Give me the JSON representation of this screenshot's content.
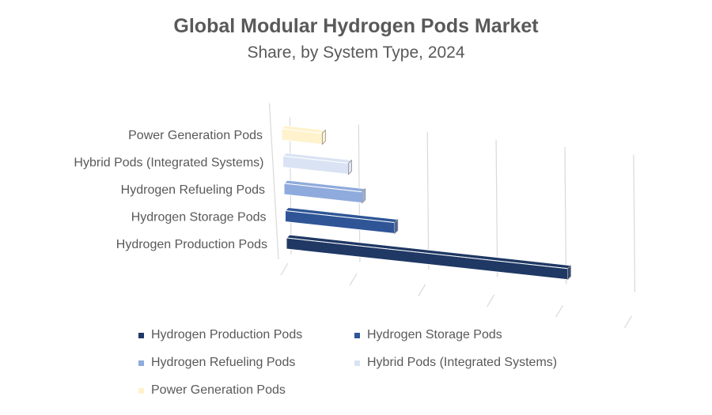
{
  "chart_data": {
    "type": "bar",
    "orientation": "horizontal-3d",
    "title": "Global Modular Hydrogen Pods Market",
    "subtitle": "Share, by System Type, 2024",
    "categories": [
      "Hydrogen Production Pods",
      "Hydrogen Storage Pods",
      "Hydrogen Refueling Pods",
      "Hybrid Pods (Integrated Systems)",
      "Power Generation Pods"
    ],
    "values": [
      45,
      17.5,
      12.5,
      10.5,
      6.5
    ],
    "colors": [
      "#1f3864",
      "#2f5597",
      "#8faadc",
      "#dae3f3",
      "#fff2cc"
    ],
    "xlim": [
      0,
      55
    ],
    "xlabel": "",
    "ylabel": "",
    "grid": true,
    "legend_position": "bottom"
  }
}
